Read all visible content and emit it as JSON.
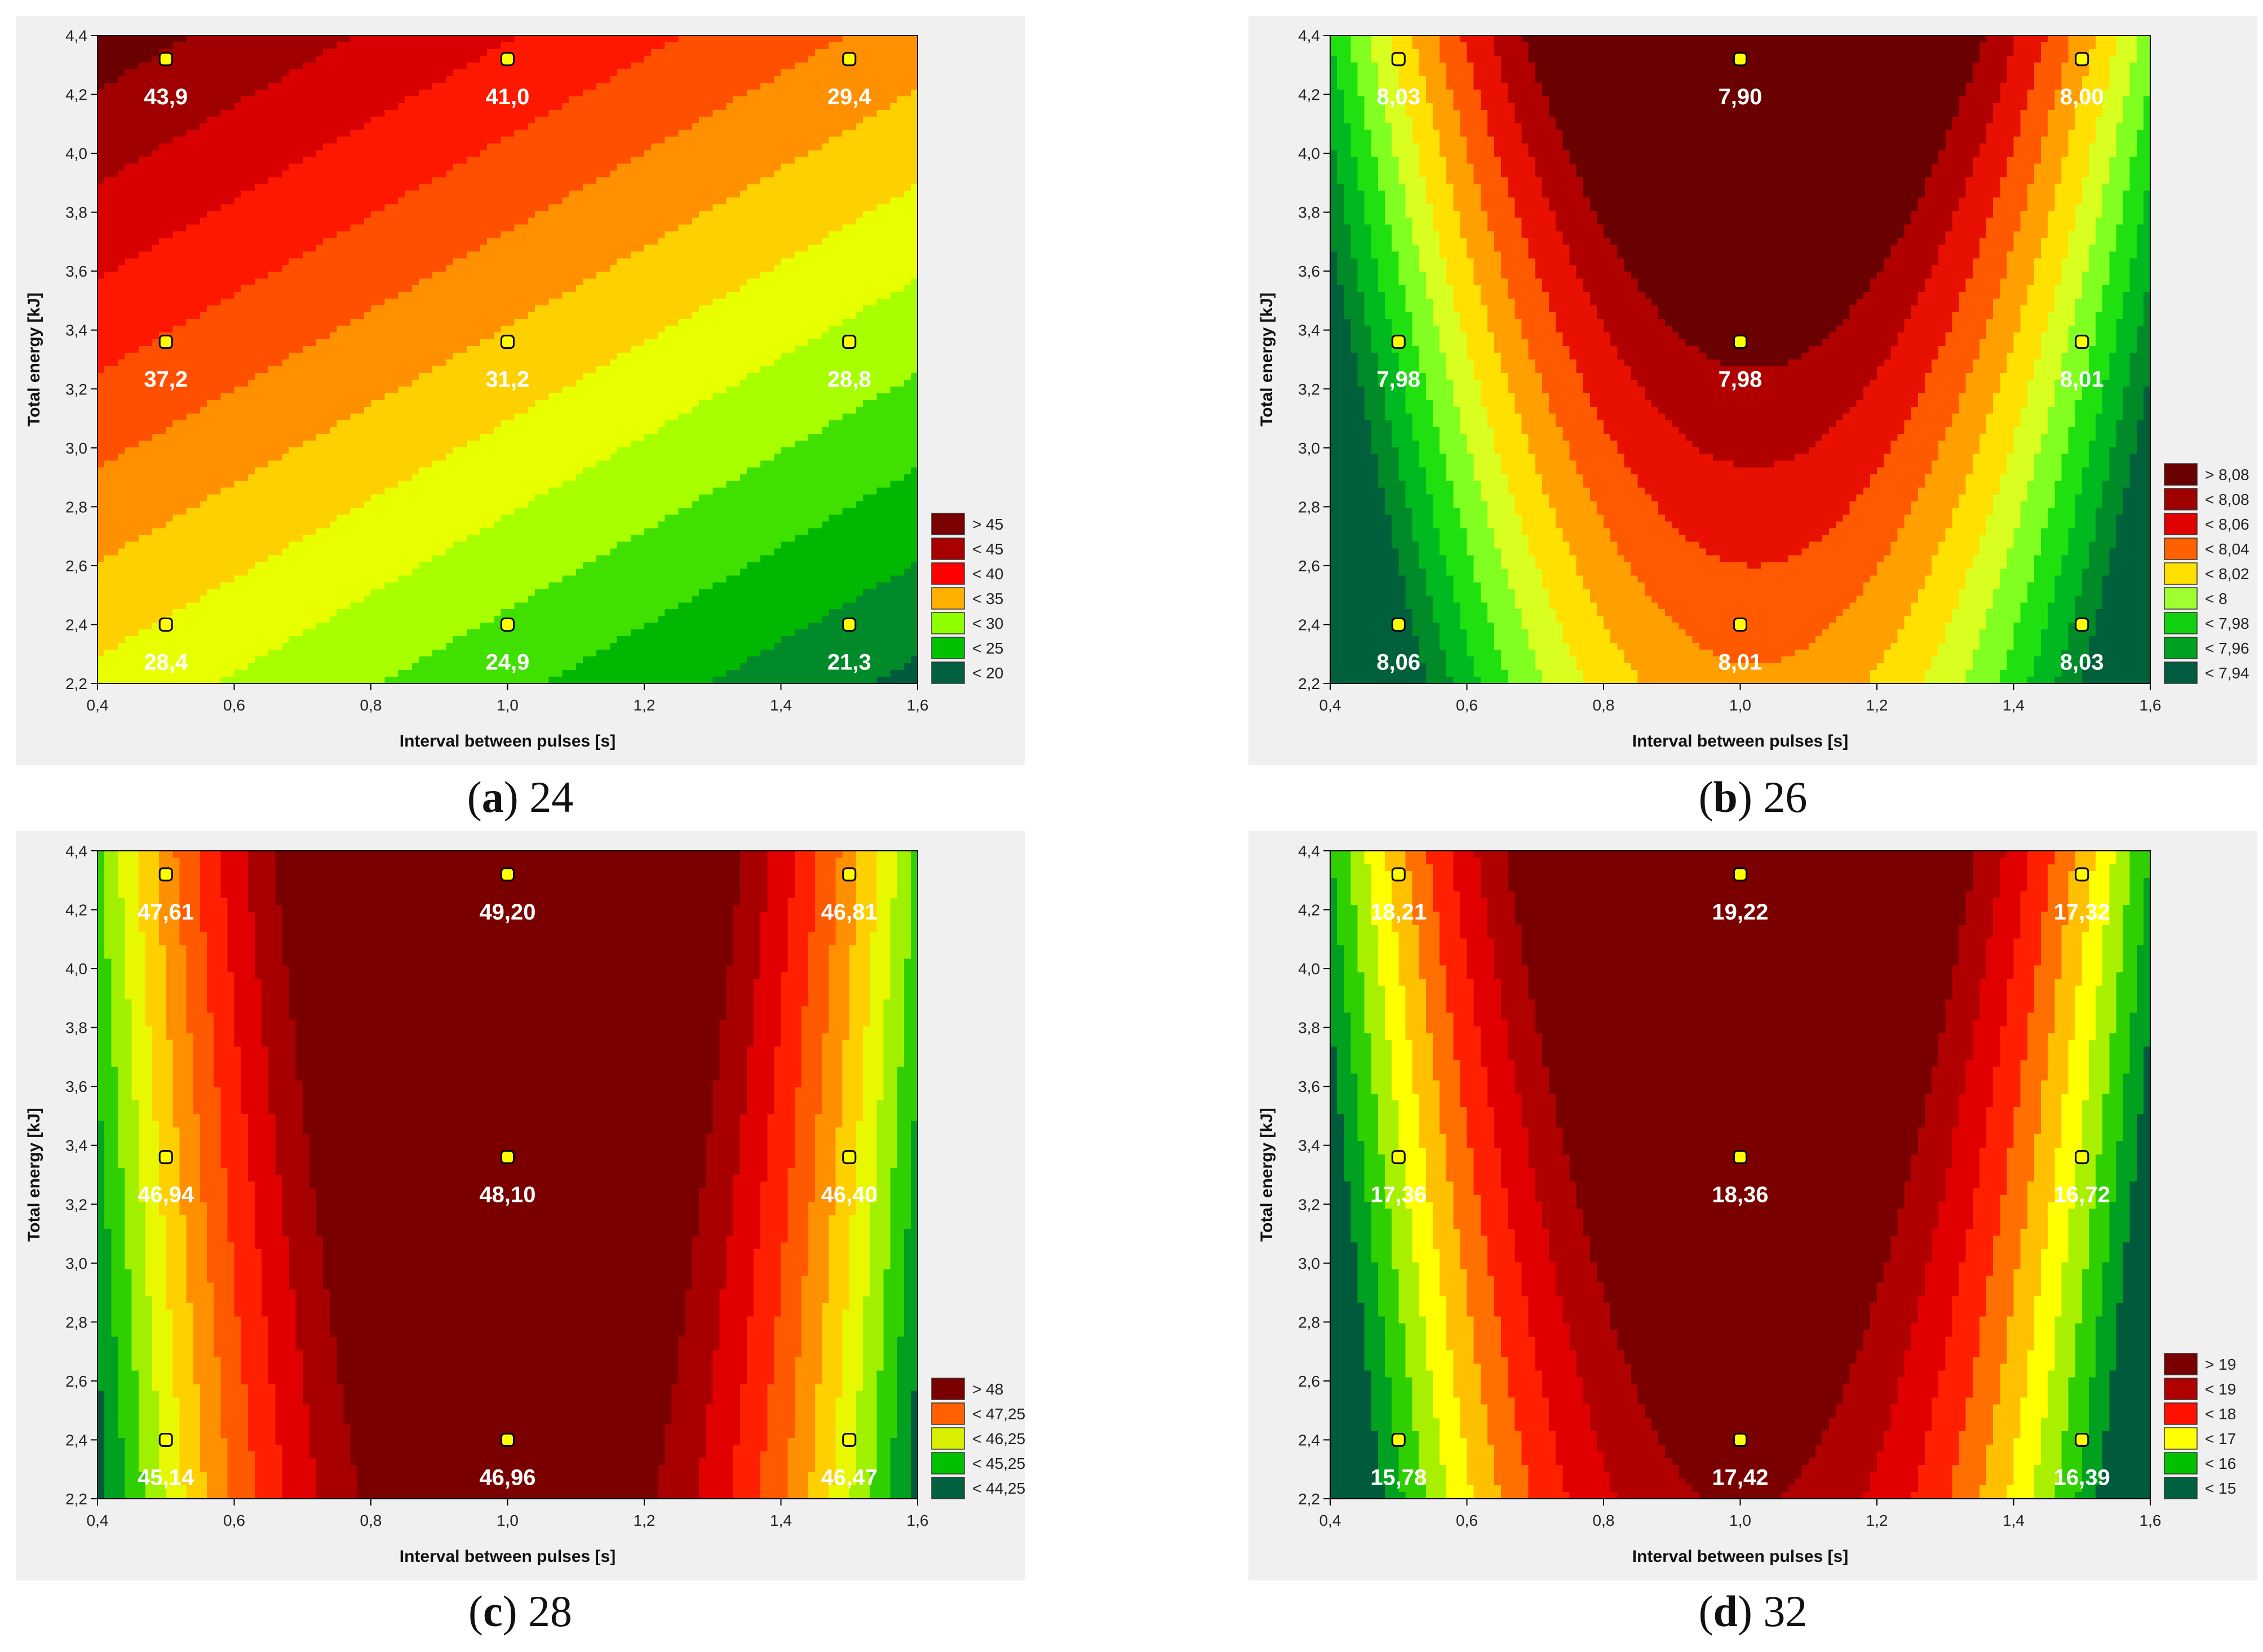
{
  "chart_data": [
    {
      "type": "heatmap",
      "subtype": "contour",
      "caption_letter": "a",
      "caption_value": "24",
      "xlabel": "Interval between pulses [s]",
      "ylabel": "Total energy [kJ]",
      "xlim": [
        0.4,
        1.6
      ],
      "ylim": [
        2.2,
        4.4
      ],
      "xticks": [
        "0,4",
        "0,6",
        "0,8",
        "1,0",
        "1,2",
        "1,4",
        "1,6"
      ],
      "yticks": [
        "2,2",
        "2,4",
        "2,6",
        "2,8",
        "3,0",
        "3,2",
        "3,4",
        "3,6",
        "3,8",
        "4,0",
        "4,2",
        "4,4"
      ],
      "points": [
        {
          "x": 0.5,
          "y": 4.32,
          "label": "43,9"
        },
        {
          "x": 1.0,
          "y": 4.32,
          "label": "41,0"
        },
        {
          "x": 1.5,
          "y": 4.32,
          "label": "29,4"
        },
        {
          "x": 0.5,
          "y": 3.36,
          "label": "37,2"
        },
        {
          "x": 1.0,
          "y": 3.36,
          "label": "31,2"
        },
        {
          "x": 1.5,
          "y": 3.36,
          "label": "28,8"
        },
        {
          "x": 0.5,
          "y": 2.4,
          "label": "28,4"
        },
        {
          "x": 1.0,
          "y": 2.4,
          "label": "24,9"
        },
        {
          "x": 1.5,
          "y": 2.4,
          "label": "21,3"
        }
      ],
      "legend": [
        {
          "label": "> 45",
          "color": "#7a0000"
        },
        {
          "label": "< 45",
          "color": "#a80000"
        },
        {
          "label": "< 40",
          "color": "#ff0000"
        },
        {
          "label": "< 35",
          "color": "#ffb000"
        },
        {
          "label": "< 30",
          "color": "#90ff00"
        },
        {
          "label": "< 25",
          "color": "#00c000"
        },
        {
          "label": "< 20",
          "color": "#006040"
        }
      ],
      "legend_position": "bottom-right"
    },
    {
      "type": "heatmap",
      "subtype": "contour",
      "caption_letter": "b",
      "caption_value": "26",
      "xlabel": "Interval between pulses [s]",
      "ylabel": "Total energy [kJ]",
      "xlim": [
        0.4,
        1.6
      ],
      "ylim": [
        2.2,
        4.4
      ],
      "xticks": [
        "0,4",
        "0,6",
        "0,8",
        "1,0",
        "1,2",
        "1,4",
        "1,6"
      ],
      "yticks": [
        "2,2",
        "2,4",
        "2,6",
        "2,8",
        "3,0",
        "3,2",
        "3,4",
        "3,6",
        "3,8",
        "4,0",
        "4,2",
        "4,4"
      ],
      "points": [
        {
          "x": 0.5,
          "y": 4.32,
          "label": "8,03"
        },
        {
          "x": 1.0,
          "y": 4.32,
          "label": "7,90"
        },
        {
          "x": 1.5,
          "y": 4.32,
          "label": "8,00"
        },
        {
          "x": 0.5,
          "y": 3.36,
          "label": "7,98"
        },
        {
          "x": 1.0,
          "y": 3.36,
          "label": "7,98"
        },
        {
          "x": 1.5,
          "y": 3.36,
          "label": "8,01"
        },
        {
          "x": 0.5,
          "y": 2.4,
          "label": "8,06"
        },
        {
          "x": 1.0,
          "y": 2.4,
          "label": "8,01"
        },
        {
          "x": 1.5,
          "y": 2.4,
          "label": "8,03"
        }
      ],
      "legend": [
        {
          "label": "> 8,08",
          "color": "#6b0000"
        },
        {
          "label": "< 8,08",
          "color": "#a00000"
        },
        {
          "label": "< 8,06",
          "color": "#e00000"
        },
        {
          "label": "< 8,04",
          "color": "#ff6000"
        },
        {
          "label": "< 8,02",
          "color": "#ffe000"
        },
        {
          "label": "< 8",
          "color": "#a0ff30"
        },
        {
          "label": "< 7,98",
          "color": "#10d010"
        },
        {
          "label": "< 7,96",
          "color": "#00a020"
        },
        {
          "label": "< 7,94",
          "color": "#005c40"
        }
      ],
      "legend_position": "bottom-right"
    },
    {
      "type": "heatmap",
      "subtype": "contour",
      "caption_letter": "c",
      "caption_value": "28",
      "xlabel": "Interval between pulses [s]",
      "ylabel": "Total energy [kJ]",
      "xlim": [
        0.4,
        1.6
      ],
      "ylim": [
        2.2,
        4.4
      ],
      "xticks": [
        "0,4",
        "0,6",
        "0,8",
        "1,0",
        "1,2",
        "1,4",
        "1,6"
      ],
      "yticks": [
        "2,2",
        "2,4",
        "2,6",
        "2,8",
        "3,0",
        "3,2",
        "3,4",
        "3,6",
        "3,8",
        "4,0",
        "4,2",
        "4,4"
      ],
      "points": [
        {
          "x": 0.5,
          "y": 4.32,
          "label": "47,61"
        },
        {
          "x": 1.0,
          "y": 4.32,
          "label": "49,20"
        },
        {
          "x": 1.5,
          "y": 4.32,
          "label": "46,81"
        },
        {
          "x": 0.5,
          "y": 3.36,
          "label": "46,94"
        },
        {
          "x": 1.0,
          "y": 3.36,
          "label": "48,10"
        },
        {
          "x": 1.5,
          "y": 3.36,
          "label": "46,40"
        },
        {
          "x": 0.5,
          "y": 2.4,
          "label": "45,14"
        },
        {
          "x": 1.0,
          "y": 2.4,
          "label": "46,96"
        },
        {
          "x": 1.5,
          "y": 2.4,
          "label": "46,47"
        }
      ],
      "legend": [
        {
          "label": "> 48",
          "color": "#7a0000"
        },
        {
          "label": "< 47,25",
          "color": "#ff6000"
        },
        {
          "label": "< 46,25",
          "color": "#d8f000"
        },
        {
          "label": "< 45,25",
          "color": "#00c000"
        },
        {
          "label": "< 44,25",
          "color": "#006040"
        }
      ],
      "legend_position": "bottom-right"
    },
    {
      "type": "heatmap",
      "subtype": "contour",
      "caption_letter": "d",
      "caption_value": "32",
      "xlabel": "Interval between pulses [s]",
      "ylabel": "Total energy [kJ]",
      "xlim": [
        0.4,
        1.6
      ],
      "ylim": [
        2.2,
        4.4
      ],
      "xticks": [
        "0,4",
        "0,6",
        "0,8",
        "1,0",
        "1,2",
        "1,4",
        "1,6"
      ],
      "yticks": [
        "2,2",
        "2,4",
        "2,6",
        "2,8",
        "3,0",
        "3,2",
        "3,4",
        "3,6",
        "3,8",
        "4,0",
        "4,2",
        "4,4"
      ],
      "points": [
        {
          "x": 0.5,
          "y": 4.32,
          "label": "18,21"
        },
        {
          "x": 1.0,
          "y": 4.32,
          "label": "19,22"
        },
        {
          "x": 1.5,
          "y": 4.32,
          "label": "17,32"
        },
        {
          "x": 0.5,
          "y": 3.36,
          "label": "17,36"
        },
        {
          "x": 1.0,
          "y": 3.36,
          "label": "18,36"
        },
        {
          "x": 1.5,
          "y": 3.36,
          "label": "16,72"
        },
        {
          "x": 0.5,
          "y": 2.4,
          "label": "15,78"
        },
        {
          "x": 1.0,
          "y": 2.4,
          "label": "17,42"
        },
        {
          "x": 1.5,
          "y": 2.4,
          "label": "16,39"
        }
      ],
      "legend": [
        {
          "label": "> 19",
          "color": "#7a0000"
        },
        {
          "label": "< 19",
          "color": "#b00000"
        },
        {
          "label": "< 18",
          "color": "#ff1000"
        },
        {
          "label": "< 17",
          "color": "#ffff00"
        },
        {
          "label": "< 16",
          "color": "#00c000"
        },
        {
          "label": "< 15",
          "color": "#006040"
        }
      ],
      "legend_position": "bottom-right"
    }
  ]
}
